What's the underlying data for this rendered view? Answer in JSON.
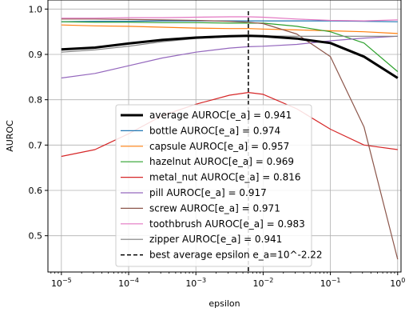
{
  "chart_data": {
    "type": "line",
    "xlabel": "epsilon",
    "ylabel": "AUROC",
    "xscale": "log",
    "xlim": [
      -5.2,
      0.05
    ],
    "ylim": [
      0.42,
      1.02
    ],
    "x_ticks": [
      {
        "exp": -5,
        "base": "10",
        "sup": "−5"
      },
      {
        "exp": -4,
        "base": "10",
        "sup": "−4"
      },
      {
        "exp": -3,
        "base": "10",
        "sup": "−3"
      },
      {
        "exp": -2,
        "base": "10",
        "sup": "−2"
      },
      {
        "exp": -1,
        "base": "10",
        "sup": "−1"
      },
      {
        "exp": 0,
        "base": "10",
        "sup": "0"
      }
    ],
    "y_ticks": [
      {
        "value": 0.5,
        "label": "0.5"
      },
      {
        "value": 0.6,
        "label": "0.6"
      },
      {
        "value": 0.7,
        "label": "0.7"
      },
      {
        "value": 0.8,
        "label": "0.8"
      },
      {
        "value": 0.9,
        "label": "0.9"
      },
      {
        "value": 1.0,
        "label": "1.0"
      }
    ],
    "grid": true,
    "legend_position": "lower-center",
    "x_log10": [
      -5,
      -4.5,
      -4,
      -3.5,
      -3,
      -2.5,
      -2.22,
      -2,
      -1.5,
      -1,
      -0.5,
      0
    ],
    "series": [
      {
        "name": "average AUROC[e_a] = 0.941",
        "color": "#000000",
        "width": 3,
        "values": [
          0.911,
          0.915,
          0.924,
          0.932,
          0.937,
          0.94,
          0.941,
          0.94,
          0.935,
          0.925,
          0.895,
          0.848
        ]
      },
      {
        "name": "bottle AUROC[e_a] = 0.974",
        "color": "#1f77b4",
        "width": 1.2,
        "values": [
          0.972,
          0.973,
          0.973,
          0.974,
          0.974,
          0.974,
          0.974,
          0.974,
          0.974,
          0.974,
          0.973,
          0.972
        ]
      },
      {
        "name": "capsule AUROC[e_a] = 0.957",
        "color": "#ff7f0e",
        "width": 1.2,
        "values": [
          0.965,
          0.963,
          0.962,
          0.96,
          0.958,
          0.957,
          0.957,
          0.956,
          0.954,
          0.952,
          0.95,
          0.946
        ]
      },
      {
        "name": "hazelnut AUROC[e_a] = 0.969",
        "color": "#2ca02c",
        "width": 1.2,
        "values": [
          0.972,
          0.971,
          0.971,
          0.97,
          0.97,
          0.969,
          0.969,
          0.969,
          0.962,
          0.95,
          0.925,
          0.862
        ]
      },
      {
        "name": "metal_nut AUROC[e_a] = 0.816",
        "color": "#d62728",
        "width": 1.2,
        "values": [
          0.675,
          0.69,
          0.725,
          0.765,
          0.79,
          0.81,
          0.816,
          0.812,
          0.78,
          0.735,
          0.7,
          0.69
        ]
      },
      {
        "name": "pill AUROC[e_a] = 0.917",
        "color": "#9467bd",
        "width": 1.2,
        "values": [
          0.848,
          0.858,
          0.875,
          0.892,
          0.905,
          0.914,
          0.917,
          0.918,
          0.922,
          0.93,
          0.936,
          0.94
        ]
      },
      {
        "name": "screw AUROC[e_a] = 0.971",
        "color": "#8c564b",
        "width": 1.2,
        "values": [
          0.978,
          0.978,
          0.977,
          0.976,
          0.975,
          0.973,
          0.971,
          0.968,
          0.945,
          0.895,
          0.74,
          0.448
        ]
      },
      {
        "name": "toothbrush AUROC[e_a] = 0.983",
        "color": "#e377c2",
        "width": 1.2,
        "values": [
          0.98,
          0.98,
          0.981,
          0.981,
          0.982,
          0.983,
          0.983,
          0.982,
          0.978,
          0.975,
          0.974,
          0.976
        ]
      },
      {
        "name": "zipper AUROC[e_a] = 0.941",
        "color": "#7f7f7f",
        "width": 1.2,
        "values": [
          0.905,
          0.91,
          0.918,
          0.928,
          0.935,
          0.939,
          0.941,
          0.941,
          0.94,
          0.94,
          0.94,
          0.94
        ]
      }
    ],
    "vline": {
      "x_log10": -2.22,
      "label": "best average epsilon e_a=10^-2.22",
      "color": "#000000"
    }
  }
}
